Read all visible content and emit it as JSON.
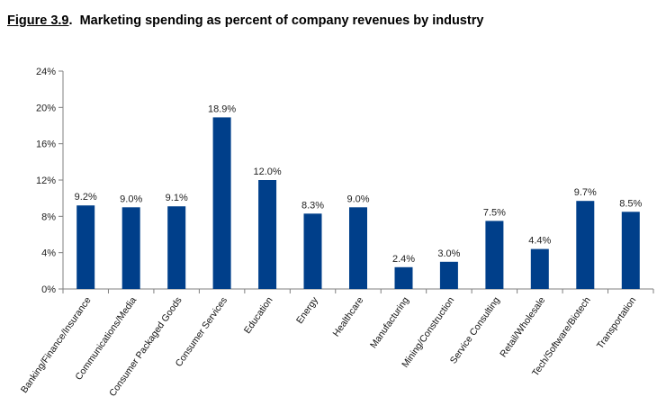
{
  "figure": {
    "number": "Figure 3.9",
    "caption": "Marketing spending as percent of company revenues by industry"
  },
  "chart_data": {
    "type": "bar",
    "title": "",
    "xlabel": "",
    "ylabel": "",
    "ylim": [
      0,
      24
    ],
    "yticks": [
      "0%",
      "4%",
      "8%",
      "12%",
      "16%",
      "20%",
      "24%"
    ],
    "ytick_values": [
      0,
      4,
      8,
      12,
      16,
      20,
      24
    ],
    "grid": false,
    "bar_color": "#003f8a",
    "categories": [
      "Banking/Finance/Insurance",
      "Communications/Media",
      "Consumer Packaged Goods",
      "Consumer Services",
      "Education",
      "Energy",
      "Healthcare",
      "Manufacturing",
      "Mining/Construction",
      "Service Consulting",
      "Retail/Wholesale",
      "Tech/Software/Biotech",
      "Transportation"
    ],
    "values": [
      9.2,
      9.0,
      9.1,
      18.9,
      12.0,
      8.3,
      9.0,
      2.4,
      3.0,
      7.5,
      4.4,
      9.7,
      8.5
    ],
    "data_labels": [
      "9.2%",
      "9.0%",
      "9.1%",
      "18.9%",
      "12.0%",
      "8.3%",
      "9.0%",
      "2.4%",
      "3.0%",
      "7.5%",
      "4.4%",
      "9.7%",
      "8.5%"
    ]
  }
}
